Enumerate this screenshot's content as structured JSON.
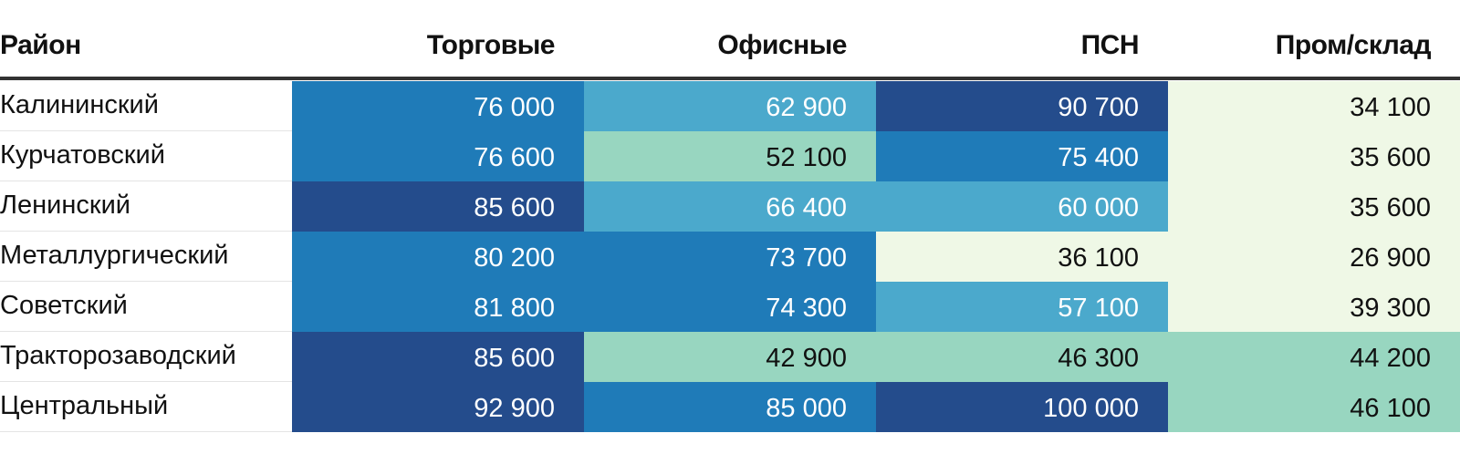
{
  "chart_data": {
    "type": "table",
    "columns": [
      "Район",
      "Торговые",
      "Офисные",
      "ПСН",
      "Пром/склад"
    ],
    "rows": [
      {
        "name": "Калининский",
        "values": [
          "76 000",
          "62 900",
          "90 700",
          "34 100"
        ]
      },
      {
        "name": "Курчатовский",
        "values": [
          "76 600",
          "52 100",
          "75 400",
          "35 600"
        ]
      },
      {
        "name": "Ленинский",
        "values": [
          "85 600",
          "66 400",
          "60 000",
          "35 600"
        ]
      },
      {
        "name": "Металлургический",
        "values": [
          "80 200",
          "73 700",
          "36 100",
          "26 900"
        ]
      },
      {
        "name": "Советский",
        "values": [
          "81 800",
          "74 300",
          "57 100",
          "39 300"
        ]
      },
      {
        "name": "Тракторозаводский",
        "values": [
          "85 600",
          "42 900",
          "46 300",
          "44 200"
        ]
      },
      {
        "name": "Центральный",
        "values": [
          "92 900",
          "85 000",
          "100 000",
          "46 100"
        ]
      }
    ],
    "color_scale": [
      {
        "color": "#eff8e6",
        "text": "#111111"
      },
      {
        "color": "#98d6c0",
        "text": "#111111"
      },
      {
        "color": "#4ba9cc",
        "text": "#ffffff"
      },
      {
        "color": "#1f7bb8",
        "text": "#ffffff"
      },
      {
        "color": "#244c8c",
        "text": "#ffffff"
      }
    ],
    "cell_color_bins": [
      [
        3,
        2,
        4,
        0
      ],
      [
        3,
        1,
        3,
        0
      ],
      [
        4,
        2,
        2,
        0
      ],
      [
        3,
        3,
        0,
        0
      ],
      [
        3,
        3,
        2,
        0
      ],
      [
        4,
        1,
        1,
        1
      ],
      [
        4,
        3,
        4,
        1
      ]
    ]
  }
}
